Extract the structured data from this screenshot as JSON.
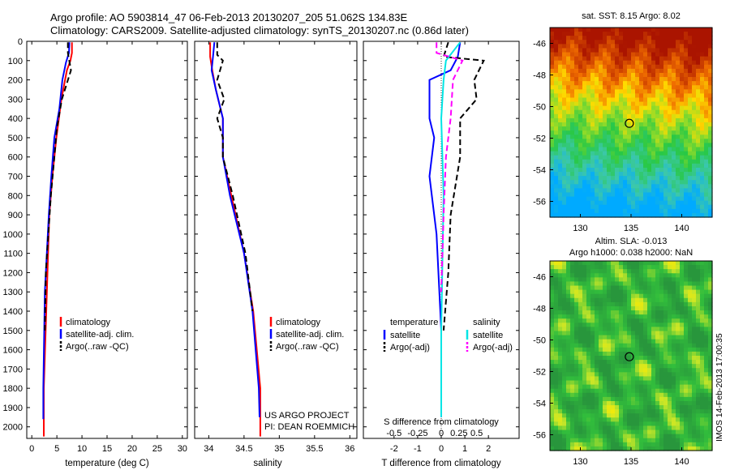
{
  "title": {
    "line1": "Argo profile: AO 5903814_47 06-Feb-2013 20130207_205 51.062S 134.83E",
    "line2": "Climatology: CARS2009. Satellite-adjusted climatology: synTS_20130207.nc (0.86d later)"
  },
  "depth_ticks": [
    "0",
    "100",
    "200",
    "300",
    "400",
    "500",
    "600",
    "700",
    "800",
    "900",
    "1000",
    "1100",
    "1200",
    "1300",
    "1400",
    "1500",
    "1600",
    "1700",
    "1800",
    "1900",
    "2000"
  ],
  "colors": {
    "climatology": "#ff0000",
    "satellite": "#0000ff",
    "argo": "#000000",
    "sal_sat": "#00e5e5",
    "sal_argo": "#ff00ff"
  },
  "chart_data": [
    {
      "type": "line",
      "xlabel": "temperature (deg C)",
      "xlim": [
        -1,
        31
      ],
      "ylim": [
        2060,
        0
      ],
      "xticks": [
        "0",
        "5",
        "10",
        "15",
        "20",
        "25",
        "30"
      ],
      "legend": [
        "climatology",
        "satellite-adj. clim.",
        "Argo(..raw -QC)"
      ],
      "series": [
        {
          "key": "climatology",
          "style": "solid",
          "x": [
            8.0,
            8.0,
            7.7,
            7.0,
            5.9,
            4.9,
            4.1,
            3.5,
            2.4,
            2.4
          ],
          "y": [
            5,
            60,
            100,
            150,
            300,
            500,
            700,
            900,
            1800,
            2050
          ]
        },
        {
          "key": "satellite",
          "style": "solid",
          "x": [
            7.5,
            7.4,
            6.8,
            6.1,
            5.5,
            4.5,
            3.9,
            3.4,
            2.6,
            2.3,
            2.3
          ],
          "y": [
            5,
            60,
            110,
            200,
            350,
            500,
            700,
            900,
            1300,
            1800,
            1960
          ]
        },
        {
          "key": "argo",
          "style": "dashed",
          "x": [
            7.2,
            7.2,
            7.8,
            6.0,
            5.0,
            4.5,
            3.8,
            2.8,
            2.6
          ],
          "y": [
            5,
            60,
            150,
            300,
            450,
            600,
            800,
            1200,
            1500
          ]
        }
      ]
    },
    {
      "type": "line",
      "xlabel": "salinity",
      "xlim": [
        33.8,
        36.1
      ],
      "ylim": [
        2060,
        0
      ],
      "xticks": [
        "34",
        "34.5",
        "35",
        "35.5",
        "36"
      ],
      "legend": [
        "climatology",
        "satellite-adj. clim.",
        "Argo(..raw -QC)"
      ],
      "annotation": [
        "US ARGO PROJECT",
        "PI: DEAN ROEMMICH"
      ],
      "series": [
        {
          "key": "climatology",
          "style": "solid",
          "x": [
            34.02,
            34.02,
            34.05,
            34.1,
            34.2,
            34.2,
            34.32,
            34.5,
            34.63,
            34.73,
            34.73
          ],
          "y": [
            5,
            80,
            150,
            250,
            400,
            600,
            800,
            1100,
            1400,
            1800,
            2050
          ]
        },
        {
          "key": "satellite",
          "style": "solid",
          "x": [
            34.08,
            34.06,
            34.04,
            34.1,
            34.2,
            34.2,
            34.3,
            34.5,
            34.62,
            34.71,
            34.72
          ],
          "y": [
            5,
            80,
            150,
            250,
            400,
            600,
            800,
            1100,
            1400,
            1800,
            1950
          ]
        },
        {
          "key": "argo",
          "style": "dashed",
          "x": [
            34.12,
            34.12,
            34.2,
            34.12,
            34.22,
            34.12,
            34.2,
            34.2,
            34.34,
            34.52,
            34.62
          ],
          "y": [
            5,
            70,
            100,
            200,
            300,
            400,
            500,
            600,
            800,
            1100,
            1400
          ]
        }
      ]
    },
    {
      "type": "line",
      "xlabel": "T difference from climatology",
      "x2label": "S difference from climatology",
      "xlim": [
        -3.3,
        3.3
      ],
      "ylim": [
        2060,
        0
      ],
      "xticks": [
        "-2",
        "-1",
        "0",
        "1",
        "2"
      ],
      "x2ticks": [
        "-0.5",
        "-0.25",
        "0",
        "0.25",
        "0.5"
      ],
      "legend": [
        "temperature",
        "satellite",
        "Argo(-adj)",
        "salinity",
        "satellite",
        "Argo(-adj)"
      ],
      "series": [
        {
          "key": "satellite",
          "style": "solid",
          "x": [
            0.8,
            0.7,
            0.4,
            -0.5,
            -0.5,
            -0.3,
            -0.5,
            -0.2,
            0,
            0
          ],
          "y": [
            5,
            80,
            150,
            200,
            400,
            500,
            700,
            1000,
            1500,
            1950
          ]
        },
        {
          "key": "argo",
          "style": "dashed",
          "x": [
            0.3,
            0.1,
            1.8,
            1.4,
            1.5,
            0.8,
            0.8,
            0.4,
            0.3,
            0.1
          ],
          "y": [
            5,
            80,
            100,
            200,
            300,
            400,
            600,
            900,
            1200,
            1500
          ]
        },
        {
          "key": "sal_sat",
          "style": "solid",
          "x": [
            0.8,
            0.2,
            0.1,
            0.0,
            0.1,
            0.0,
            0.0
          ],
          "y": [
            5,
            100,
            200,
            400,
            800,
            1500,
            1950
          ]
        },
        {
          "key": "sal_argo",
          "style": "dashed",
          "x": [
            -0.2,
            -0.2,
            0.9,
            0.5,
            0.4,
            0.2,
            0.1,
            0.0
          ],
          "y": [
            5,
            60,
            100,
            200,
            400,
            600,
            900,
            1300
          ]
        }
      ]
    }
  ],
  "maps": [
    {
      "title": "sat. SST: 8.15 Argo: 8.02",
      "title2": "",
      "yticks": [
        "-46",
        "-48",
        "-50",
        "-52",
        "-54",
        "-56"
      ],
      "xticks": [
        "130",
        "135",
        "140"
      ]
    },
    {
      "title": "Altim. SLA: -0.013",
      "title2": "Argo h1000: 0.038 h2000: NaN",
      "yticks": [
        "-46",
        "-48",
        "-50",
        "-52",
        "-54",
        "-56"
      ],
      "xticks": [
        "130",
        "135",
        "140"
      ]
    }
  ],
  "stamp": "IMOS 14-Feb-2013 17:00:35"
}
